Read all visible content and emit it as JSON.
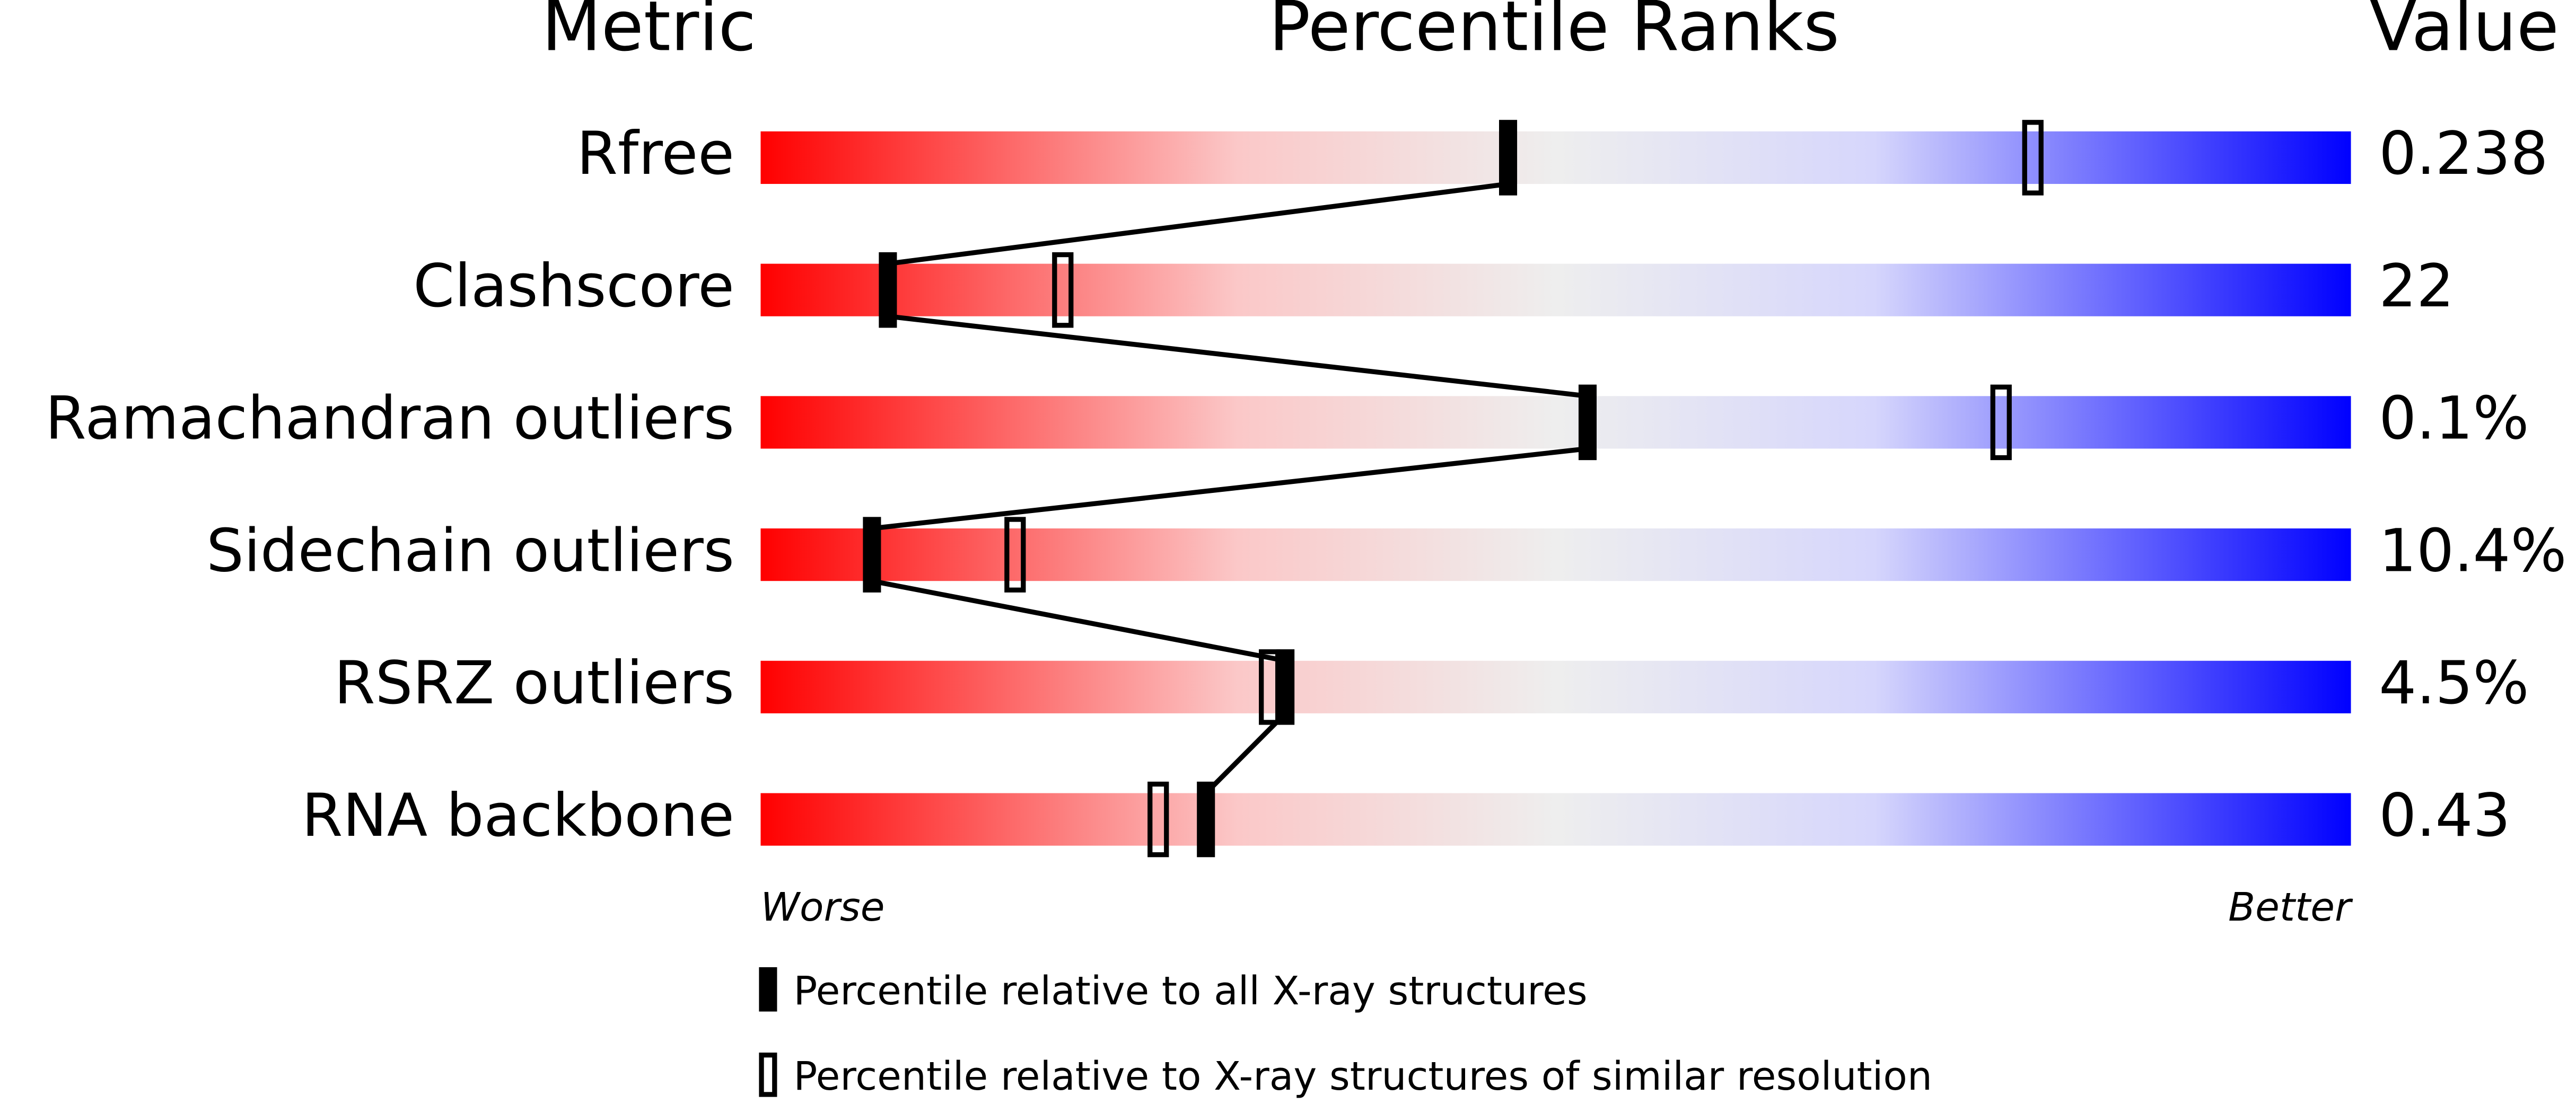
{
  "chart_data": {
    "type": "percentile",
    "title": "Percentile Ranks",
    "metric_header": "Metric",
    "value_header": "Value",
    "categories": [
      "Rfree",
      "Clashscore",
      "Ramachandran outliers",
      "Sidechain outliers",
      "RSRZ outliers",
      "RNA backbone"
    ],
    "metric_values": [
      "0.238",
      "22",
      "0.1%",
      "10.4%",
      "4.5%",
      "0.43"
    ],
    "series": [
      {
        "name": "Percentile relative to all X-ray structures",
        "color": "#000000",
        "values": [
          47,
          8,
          52,
          7,
          33,
          28
        ]
      },
      {
        "name": "Percentile relative to X-ray structures of similar resolution",
        "color": "#000000",
        "values": [
          80,
          19,
          78,
          16,
          32,
          25
        ]
      }
    ],
    "xlim": [
      0,
      100
    ],
    "x_left_label": "Worse",
    "x_right_label": "Better"
  }
}
